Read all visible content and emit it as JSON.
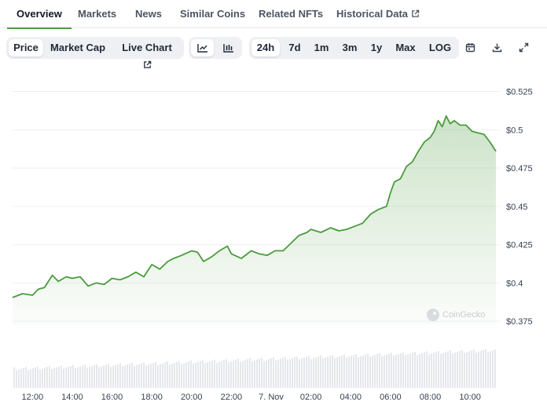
{
  "tabs": [
    {
      "label": "Overview",
      "active": true
    },
    {
      "label": "Markets"
    },
    {
      "label": "News"
    },
    {
      "label": "Similar Coins"
    },
    {
      "label": "Related NFTs"
    },
    {
      "label": "Historical Data",
      "external": true
    }
  ],
  "toolbar": {
    "metric_tabs": [
      "Price",
      "Market Cap",
      "Live Chart"
    ],
    "selected_metric": "Price",
    "chart_style_icons": [
      "line-chart-icon",
      "candlestick-chart-icon"
    ],
    "ranges": [
      "24h",
      "7d",
      "1m",
      "3m",
      "1y",
      "Max",
      "LOG"
    ],
    "selected_range": "24h",
    "action_icons": [
      "calendar-icon",
      "download-icon",
      "expand-icon"
    ]
  },
  "watermark": "CoinGecko",
  "colors": {
    "line": "#4b9b3e",
    "accent": "#4b9b3e",
    "volume": "#e5e7eb"
  },
  "chart_data": {
    "type": "area",
    "title": "",
    "xlabel": "",
    "ylabel": "",
    "y_tick_labels": [
      "$0.525",
      "$0.5",
      "$0.475",
      "$0.45",
      "$0.425",
      "$0.4",
      "$0.375"
    ],
    "y_ticks": [
      0.525,
      0.5,
      0.475,
      0.45,
      0.425,
      0.4,
      0.375
    ],
    "ylim": [
      0.3725,
      0.5355
    ],
    "x_tick_labels": [
      "12:00",
      "14:00",
      "16:00",
      "18:00",
      "20:00",
      "22:00",
      "7. Nov",
      "02:00",
      "04:00",
      "06:00",
      "08:00",
      "10:00"
    ],
    "x_ticks": [
      12,
      14,
      16,
      18,
      20,
      22,
      24,
      26,
      28,
      30,
      32,
      34
    ],
    "xlim": [
      11,
      35.3
    ],
    "grid": true,
    "series": [
      {
        "x": [
          11.0,
          11.5,
          12.0,
          12.3,
          12.6,
          13.0,
          13.3,
          13.7,
          14.0,
          14.4,
          14.8,
          15.2,
          15.6,
          16.0,
          16.4,
          16.8,
          17.2,
          17.6,
          18.0,
          18.4,
          18.8,
          19.1,
          19.5,
          20.0,
          20.3,
          20.6,
          21.0,
          21.4,
          21.8,
          22.0,
          22.5,
          23.0,
          23.4,
          23.8,
          24.2,
          24.6,
          25.0,
          25.4,
          25.8,
          26.0,
          26.5,
          27.0,
          27.4,
          27.8,
          28.2,
          28.6,
          29.0,
          29.4,
          29.8,
          30.0,
          30.2,
          30.5,
          30.8,
          31.1,
          31.4,
          31.7,
          32.0,
          32.2,
          32.4,
          32.6,
          32.8,
          33.0,
          33.2,
          33.5,
          33.8,
          34.1,
          34.4,
          34.7,
          35.0,
          35.3
        ],
        "y": [
          0.3905,
          0.393,
          0.392,
          0.396,
          0.397,
          0.405,
          0.401,
          0.404,
          0.403,
          0.404,
          0.398,
          0.4,
          0.399,
          0.403,
          0.402,
          0.404,
          0.407,
          0.404,
          0.412,
          0.409,
          0.414,
          0.416,
          0.418,
          0.421,
          0.42,
          0.414,
          0.417,
          0.421,
          0.424,
          0.419,
          0.416,
          0.421,
          0.419,
          0.418,
          0.421,
          0.421,
          0.426,
          0.431,
          0.433,
          0.435,
          0.433,
          0.436,
          0.434,
          0.435,
          0.437,
          0.439,
          0.445,
          0.448,
          0.45,
          0.459,
          0.466,
          0.468,
          0.476,
          0.479,
          0.486,
          0.492,
          0.495,
          0.499,
          0.506,
          0.502,
          0.509,
          0.504,
          0.506,
          0.503,
          0.503,
          0.499,
          0.498,
          0.497,
          0.492,
          0.486
        ]
      }
    ]
  }
}
